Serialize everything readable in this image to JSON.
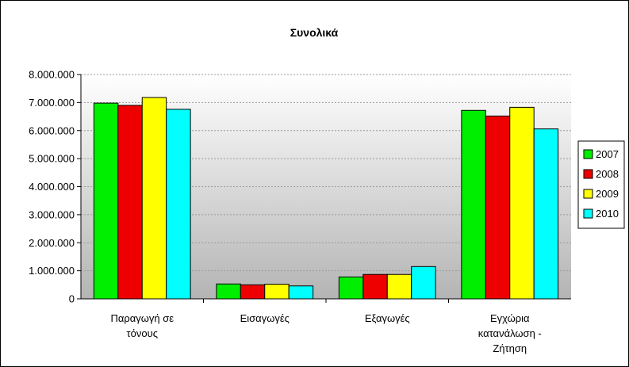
{
  "chart_data": {
    "type": "bar",
    "title": "Συνολικά",
    "xlabel": "",
    "ylabel": "",
    "categories": [
      [
        "Παραγωγή σε",
        "τόνους"
      ],
      [
        "Εισαγωγές"
      ],
      [
        "Εξαγωγές"
      ],
      [
        "Εγχώρια",
        "κατανάλωση -",
        "Ζήτηση"
      ]
    ],
    "series": [
      {
        "name": "2007",
        "color": "#00ee00",
        "values": [
          6980000,
          530000,
          780000,
          6720000
        ]
      },
      {
        "name": "2008",
        "color": "#ee0000",
        "values": [
          6900000,
          500000,
          870000,
          6520000
        ]
      },
      {
        "name": "2009",
        "color": "#ffff00",
        "values": [
          7180000,
          520000,
          870000,
          6830000
        ]
      },
      {
        "name": "2010",
        "color": "#00ffff",
        "values": [
          6760000,
          460000,
          1150000,
          6060000
        ]
      }
    ],
    "ylim": [
      0,
      8000000
    ],
    "yticks": [
      {
        "value": 0,
        "label": "0"
      },
      {
        "value": 1000000,
        "label": "1.000.000"
      },
      {
        "value": 2000000,
        "label": "2.000.000"
      },
      {
        "value": 3000000,
        "label": "3.000.000"
      },
      {
        "value": 4000000,
        "label": "4.000.000"
      },
      {
        "value": 5000000,
        "label": "5.000.000"
      },
      {
        "value": 6000000,
        "label": "6.000.000"
      },
      {
        "value": 7000000,
        "label": "7.000.000"
      },
      {
        "value": 8000000,
        "label": "8.000.000"
      }
    ],
    "grid": true,
    "legend": "right"
  }
}
